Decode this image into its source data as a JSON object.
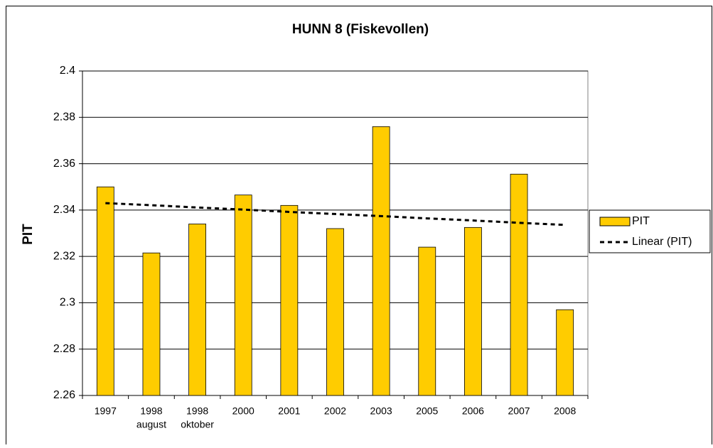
{
  "chart_data": {
    "type": "bar",
    "title": "HUNN 8 (Fiskevollen)",
    "y_label": "PIT",
    "categories": [
      [
        "1997"
      ],
      [
        "1998",
        "august"
      ],
      [
        "1998",
        "oktober"
      ],
      [
        "2000"
      ],
      [
        "2001"
      ],
      [
        "2002"
      ],
      [
        "2003"
      ],
      [
        "2005"
      ],
      [
        "2006"
      ],
      [
        "2007"
      ],
      [
        "2008"
      ]
    ],
    "series": [
      {
        "name": "PIT",
        "type": "bar",
        "color": "#ffcc00",
        "values": [
          2.35,
          2.3215,
          2.334,
          2.3465,
          2.342,
          2.332,
          2.376,
          2.324,
          2.3325,
          2.3555,
          2.297
        ]
      },
      {
        "name": "Linear (PIT)",
        "type": "line",
        "color": "#000000",
        "dashed": true,
        "values": [
          2.343,
          2.3421,
          2.3411,
          2.3402,
          2.3392,
          2.3383,
          2.3374,
          2.3364,
          2.3355,
          2.3345,
          2.3336
        ]
      }
    ],
    "ylim": [
      2.26,
      2.4
    ],
    "yticks": [
      2.26,
      2.28,
      2.3,
      2.32,
      2.34,
      2.36,
      2.38,
      2.4
    ],
    "grid": true,
    "legend": "right"
  }
}
